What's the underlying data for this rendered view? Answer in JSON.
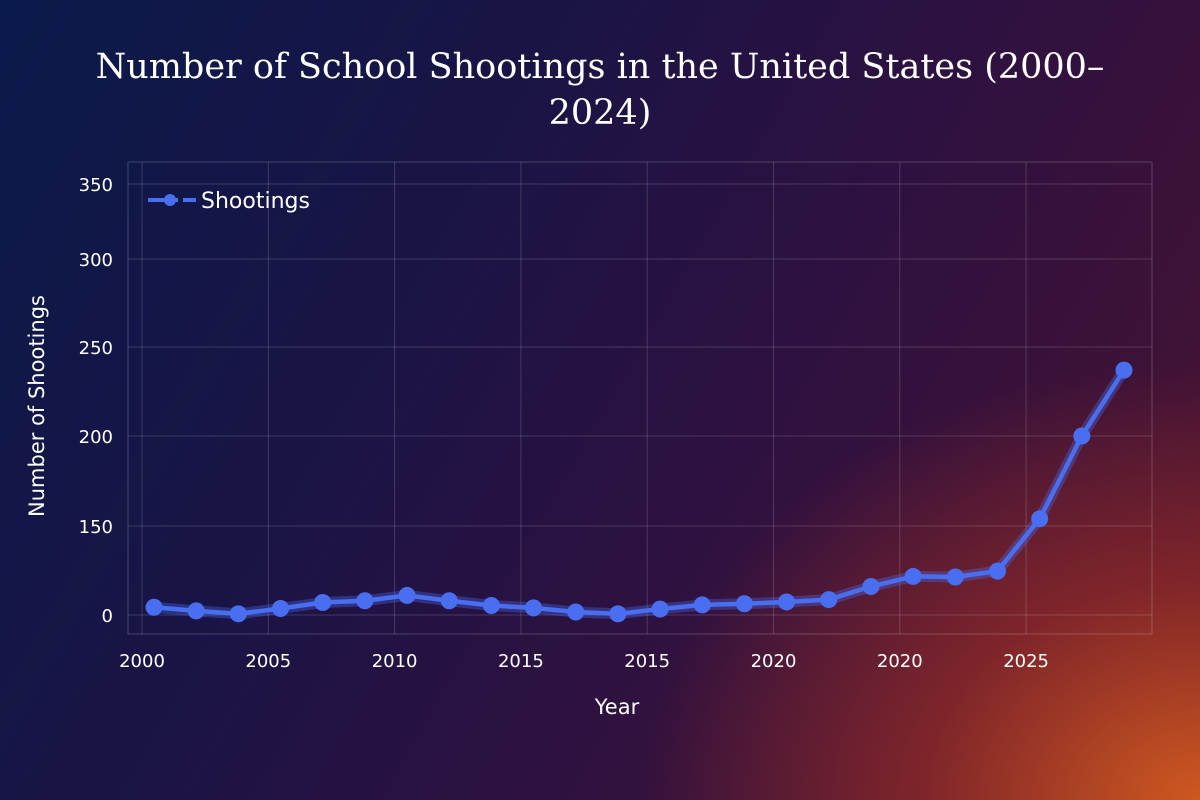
{
  "chart_data": {
    "type": "line",
    "title": "Number of School Shootings in the United States (2000–2024)",
    "title_lines": [
      "Number of School Shootings in the United States (2000–",
      "2024)"
    ],
    "xlabel": "Year",
    "ylabel": "Number of Shootings",
    "x_tick_labels": [
      "2000",
      "2005",
      "2010",
      "2015",
      "2015",
      "2020",
      "2020",
      "2025"
    ],
    "y_ticks": [
      0,
      150,
      200,
      250,
      300,
      350
    ],
    "grid": true,
    "legend": {
      "position": "top-left",
      "entries": [
        "Shootings"
      ]
    },
    "series": [
      {
        "name": "Shootings",
        "color": "#4a6ef0",
        "values": [
          13,
          7,
          2,
          11,
          21,
          24,
          33,
          24,
          16,
          12,
          5,
          2,
          10,
          17,
          19,
          22,
          26,
          48,
          65,
          64,
          74,
          154,
          200,
          237
        ]
      }
    ]
  }
}
